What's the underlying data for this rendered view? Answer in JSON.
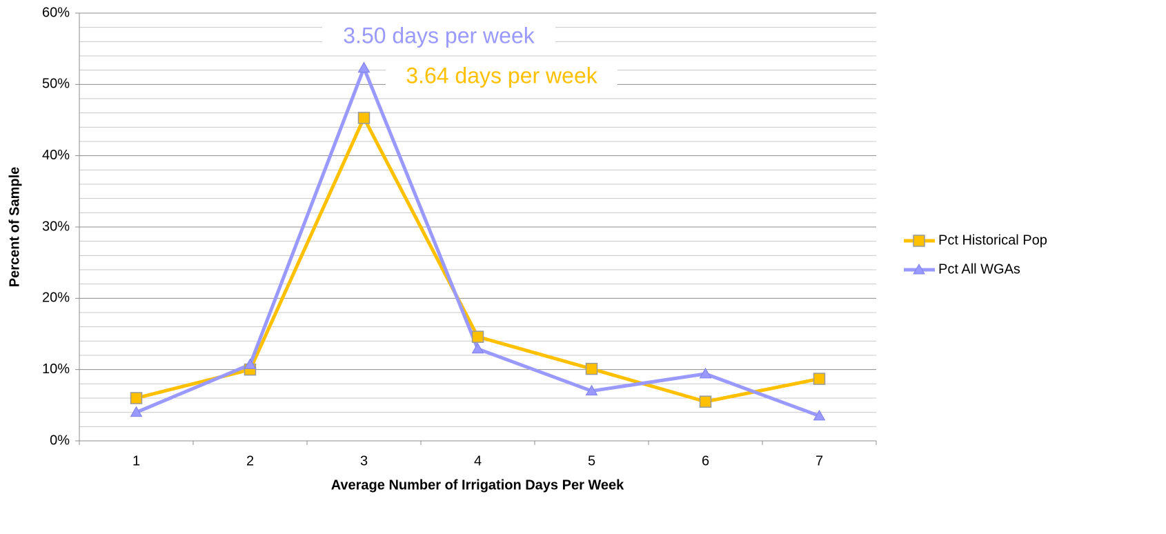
{
  "chart_data": {
    "type": "line",
    "x_label": "Average Number of Irrigation Days Per Week",
    "y_label": "Percent of Sample",
    "categories": [
      "1",
      "2",
      "3",
      "4",
      "5",
      "6",
      "7"
    ],
    "series": [
      {
        "name": "Pct Historical Pop",
        "color": "#FFC000",
        "marker": "square",
        "values": [
          6.0,
          10.0,
          45.3,
          14.6,
          10.1,
          5.5,
          8.7
        ]
      },
      {
        "name": "Pct All WGAs",
        "color": "#9999FF",
        "marker": "triangle",
        "values": [
          4.0,
          10.7,
          52.3,
          12.9,
          7.0,
          9.4,
          3.5
        ]
      }
    ],
    "ylim": [
      0,
      60
    ],
    "yticks": [
      {
        "value": 0,
        "label": "0%"
      },
      {
        "value": 10,
        "label": "10%"
      },
      {
        "value": 20,
        "label": "20%"
      },
      {
        "value": 30,
        "label": "30%"
      },
      {
        "value": 40,
        "label": "40%"
      },
      {
        "value": 50,
        "label": "50%"
      },
      {
        "value": 60,
        "label": "60%"
      }
    ],
    "minor_yticks": [
      2,
      4,
      6,
      8,
      12,
      14,
      16,
      18,
      22,
      24,
      26,
      28,
      32,
      34,
      36,
      38,
      42,
      44,
      46,
      48,
      52,
      54,
      56,
      58
    ],
    "grid": true,
    "legend_position": "right",
    "annotations": [
      {
        "text": "3.50 days per week",
        "color": "#9999FF"
      },
      {
        "text": "3.64 days per week",
        "color": "#FFC000"
      }
    ]
  }
}
